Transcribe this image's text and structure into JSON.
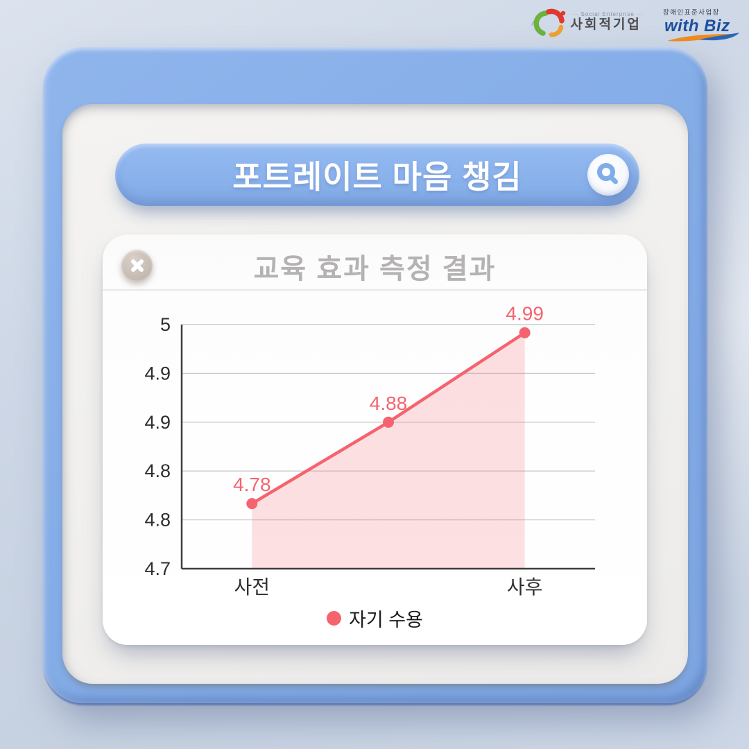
{
  "logos": {
    "social_enterprise": {
      "subtitle": "Social Enterprise",
      "title": "사회적기업"
    },
    "with_biz": {
      "subtitle": "장애인표준사업장",
      "title": "with Biz"
    }
  },
  "window": {
    "accent_color": "#86aee7",
    "traffic_lights": [
      "#f1738e",
      "#85de6e",
      "#edbb70"
    ],
    "search_bar": {
      "title": "포트레이트 마음 챙김"
    }
  },
  "card": {
    "title": "교육 효과 측정 결과"
  },
  "chart_data": {
    "type": "area",
    "title": "교육 효과 측정 결과",
    "x_labels": [
      "사전",
      "",
      "사후"
    ],
    "series": [
      {
        "name": "자기 수용",
        "values": [
          4.78,
          4.88,
          4.99
        ],
        "labels": [
          "4.78",
          "4.88",
          "4.99"
        ]
      }
    ],
    "ylim": [
      4.7,
      5.0
    ],
    "y_tick_labels": [
      "5",
      "4.9",
      "4.9",
      "4.8",
      "4.8",
      "4.7"
    ],
    "grid": true,
    "legend_position": "bottom",
    "x_padding_frac": 0.17,
    "line_color": "#f5636e",
    "fill_color": "rgba(245,99,110,0.20)",
    "grid_color": "#cccccc",
    "axis_color": "#3d3d3d",
    "label_color": "#2e2e2e"
  }
}
